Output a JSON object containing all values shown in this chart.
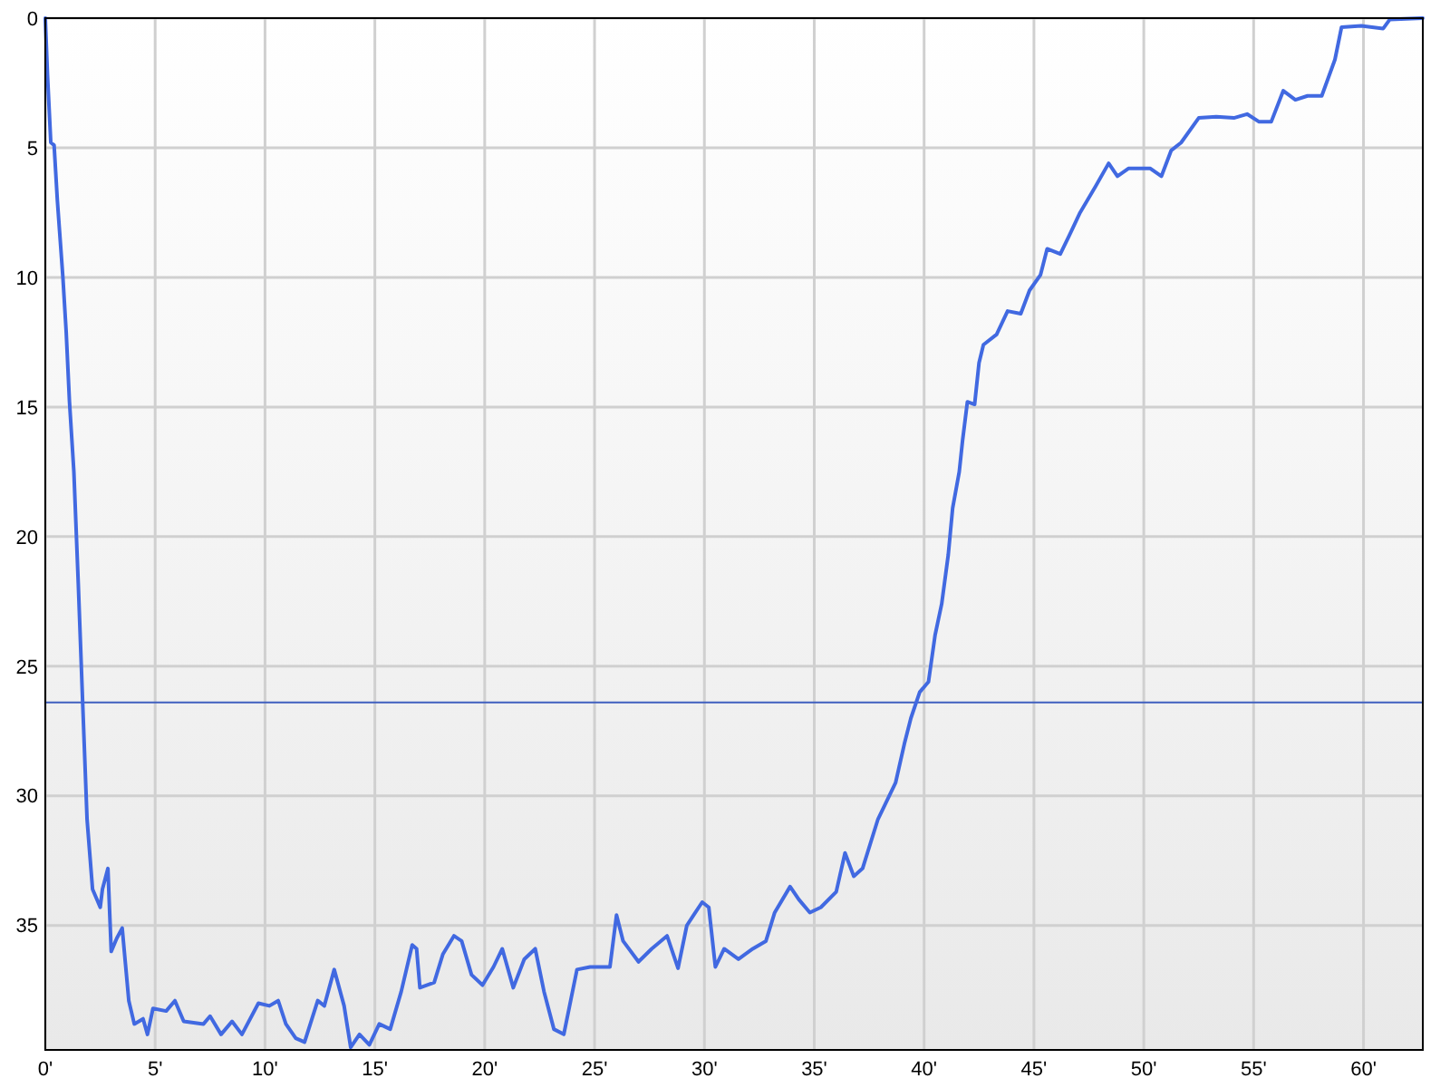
{
  "chart_data": {
    "type": "line",
    "xlim": [
      0,
      62.7
    ],
    "ylim": [
      39.8,
      0
    ],
    "xticks": [
      {
        "value": 0,
        "label": "0'"
      },
      {
        "value": 5,
        "label": "5'"
      },
      {
        "value": 10,
        "label": "10'"
      },
      {
        "value": 15,
        "label": "15'"
      },
      {
        "value": 20,
        "label": "20'"
      },
      {
        "value": 25,
        "label": "25'"
      },
      {
        "value": 30,
        "label": "30'"
      },
      {
        "value": 35,
        "label": "35'"
      },
      {
        "value": 40,
        "label": "40'"
      },
      {
        "value": 45,
        "label": "45'"
      },
      {
        "value": 50,
        "label": "50'"
      },
      {
        "value": 55,
        "label": "55'"
      },
      {
        "value": 60,
        "label": "60'"
      }
    ],
    "yticks": [
      0,
      5,
      10,
      15,
      20,
      25,
      30,
      35
    ],
    "grid": true,
    "marker": "none",
    "line_style": "solid",
    "ref_lines": [
      {
        "axis": "y",
        "value": 26.4,
        "color": "#3f5fbf"
      }
    ],
    "series": [
      {
        "color": "#4169e1",
        "x": [
          0,
          0.1,
          0.25,
          0.4,
          0.55,
          0.8,
          0.95,
          1.1,
          1.3,
          1.5,
          1.7,
          1.9,
          2.15,
          2.3,
          2.5,
          2.6,
          2.85,
          3.0,
          3.25,
          3.5,
          3.65,
          3.8,
          4.05,
          4.45,
          4.65,
          4.9,
          5.5,
          5.9,
          6.3,
          7.2,
          7.5,
          8.0,
          8.5,
          8.95,
          9.7,
          10.2,
          10.6,
          10.95,
          11.4,
          11.8,
          12.4,
          12.7,
          13.15,
          13.6,
          13.9,
          14.3,
          14.75,
          15.2,
          15.7,
          16.2,
          16.7,
          16.9,
          17.05,
          17.7,
          18.1,
          18.6,
          18.95,
          19.4,
          19.9,
          20.4,
          20.8,
          21.3,
          21.8,
          22.3,
          22.7,
          23.15,
          23.6,
          24.2,
          24.8,
          25.7,
          26.0,
          26.3,
          27.0,
          27.6,
          28.3,
          28.8,
          29.2,
          29.9,
          30.2,
          30.5,
          30.9,
          31.55,
          32.2,
          32.8,
          33.2,
          33.9,
          34.3,
          34.8,
          35.3,
          36.0,
          36.4,
          36.8,
          37.2,
          37.9,
          38.7,
          39.1,
          39.4,
          39.8,
          40.2,
          40.5,
          40.8,
          41.1,
          41.3,
          41.6,
          41.75,
          41.97,
          42.3,
          42.5,
          42.7,
          43.3,
          43.8,
          44.4,
          44.8,
          45.3,
          45.6,
          46.2,
          46.6,
          47.1,
          47.8,
          48.4,
          48.8,
          49.3,
          50.3,
          50.8,
          51.25,
          51.7,
          52.5,
          53.3,
          54.1,
          54.7,
          55.25,
          55.8,
          56.35,
          56.9,
          57.45,
          58.1,
          58.7,
          59.0,
          59.9,
          60.9,
          61.2,
          62.7
        ],
        "values": [
          0,
          2.2,
          4.8,
          4.9,
          7.05,
          10.0,
          12.1,
          14.8,
          17.5,
          21.8,
          26.4,
          30.9,
          33.6,
          33.9,
          34.3,
          33.6,
          32.8,
          36.0,
          35.5,
          35.1,
          36.5,
          37.9,
          38.8,
          38.6,
          39.2,
          38.2,
          38.3,
          37.9,
          38.7,
          38.8,
          38.5,
          39.2,
          38.7,
          39.2,
          38.0,
          38.1,
          37.9,
          38.8,
          39.35,
          39.5,
          37.9,
          38.1,
          36.7,
          38.1,
          39.7,
          39.2,
          39.6,
          38.8,
          39.0,
          37.55,
          35.75,
          35.9,
          37.4,
          37.2,
          36.1,
          35.4,
          35.6,
          36.9,
          37.3,
          36.6,
          35.9,
          37.4,
          36.3,
          35.9,
          37.55,
          39.0,
          39.2,
          36.7,
          36.6,
          36.6,
          34.6,
          35.6,
          36.4,
          35.9,
          35.4,
          36.65,
          35.0,
          34.1,
          34.3,
          36.6,
          35.9,
          36.3,
          35.9,
          35.6,
          34.5,
          33.5,
          34.0,
          34.5,
          34.3,
          33.7,
          32.2,
          33.1,
          32.8,
          30.9,
          29.5,
          28.0,
          27.0,
          26.0,
          25.6,
          23.8,
          22.6,
          20.7,
          18.9,
          17.5,
          16.3,
          14.8,
          14.9,
          13.3,
          12.6,
          12.2,
          11.3,
          11.4,
          10.5,
          9.9,
          8.9,
          9.1,
          8.4,
          7.5,
          6.5,
          5.6,
          6.1,
          5.8,
          5.8,
          6.1,
          5.1,
          4.8,
          3.85,
          3.8,
          3.85,
          3.7,
          4.0,
          4.0,
          2.8,
          3.15,
          3.0,
          3.0,
          1.6,
          0.35,
          0.3,
          0.4,
          0.05,
          0
        ]
      }
    ]
  }
}
